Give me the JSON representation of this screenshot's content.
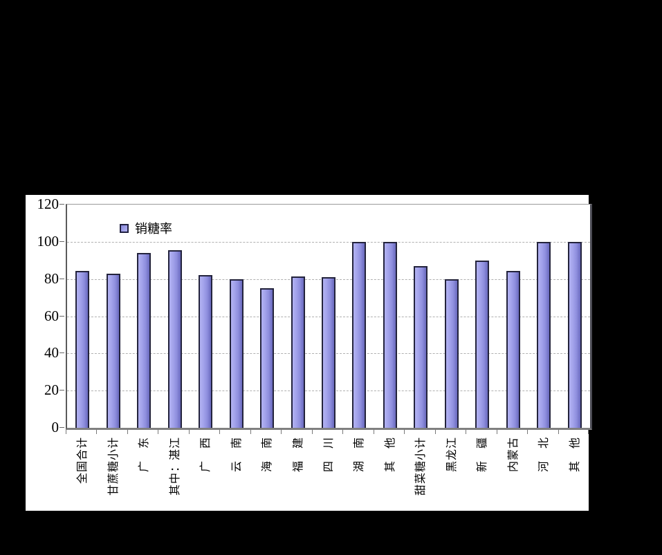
{
  "chart_data": {
    "type": "bar",
    "title": "",
    "legend": [
      {
        "label": "销糖率",
        "color": "#9c9ce8"
      }
    ],
    "legend_position": "top-left-inside-plot",
    "categories": [
      "全国合计",
      "甘蔗糖小计",
      "广　东",
      "其中：湛江",
      "广　西",
      "云　南",
      "海　南",
      "福　建",
      "四　川",
      "湖　南",
      "其　他",
      "甜菜糖小计",
      "黑龙江",
      "新　疆",
      "内蒙古",
      "河　北",
      "其　他"
    ],
    "series": [
      {
        "name": "销糖率",
        "values": [
          84.5,
          83,
          94,
          95.5,
          82,
          80,
          75,
          81.5,
          81,
          100,
          100,
          87,
          80,
          90,
          84.5,
          100,
          100
        ]
      }
    ],
    "xlabel": "",
    "ylabel": "",
    "ylim": [
      0,
      120
    ],
    "yticks": [
      0,
      20,
      40,
      60,
      80,
      100,
      120
    ],
    "grid": "horizontal-dashed",
    "x_label_rotation_deg": -90,
    "colors": {
      "page_background": "#000000",
      "chart_background": "#ffffff",
      "bar_fill": "#9c9ce8",
      "bar_border": "#23233c",
      "gridline": "#b0b0b0",
      "axis": "#808080",
      "text": "#000000"
    }
  }
}
